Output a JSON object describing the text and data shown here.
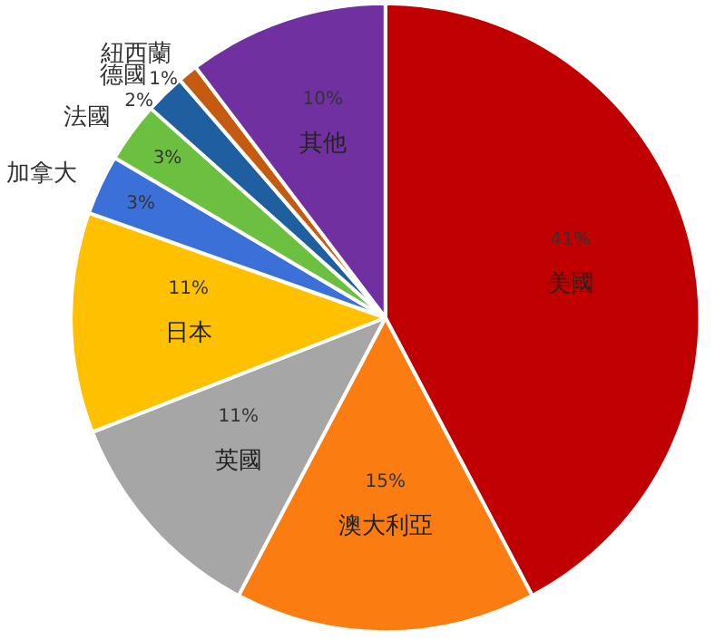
{
  "chart_data": {
    "type": "pie",
    "categories": [
      "美國",
      "澳大利亞",
      "英國",
      "日本",
      "加拿大",
      "法國",
      "德國",
      "紐西蘭",
      "其他"
    ],
    "values": [
      41,
      15,
      11,
      11,
      3,
      3,
      2,
      1,
      10
    ],
    "colors": [
      "#c00000",
      "#fb7d12",
      "#a6a6a6",
      "#ffc000",
      "#3a70d8",
      "#6cc040",
      "#1f5f9f",
      "#c55a11",
      "#7030a0"
    ],
    "value_labels": [
      "41%",
      "15%",
      "11%",
      "11%",
      "3%",
      "3%",
      "2%",
      "1%",
      "10%"
    ]
  }
}
